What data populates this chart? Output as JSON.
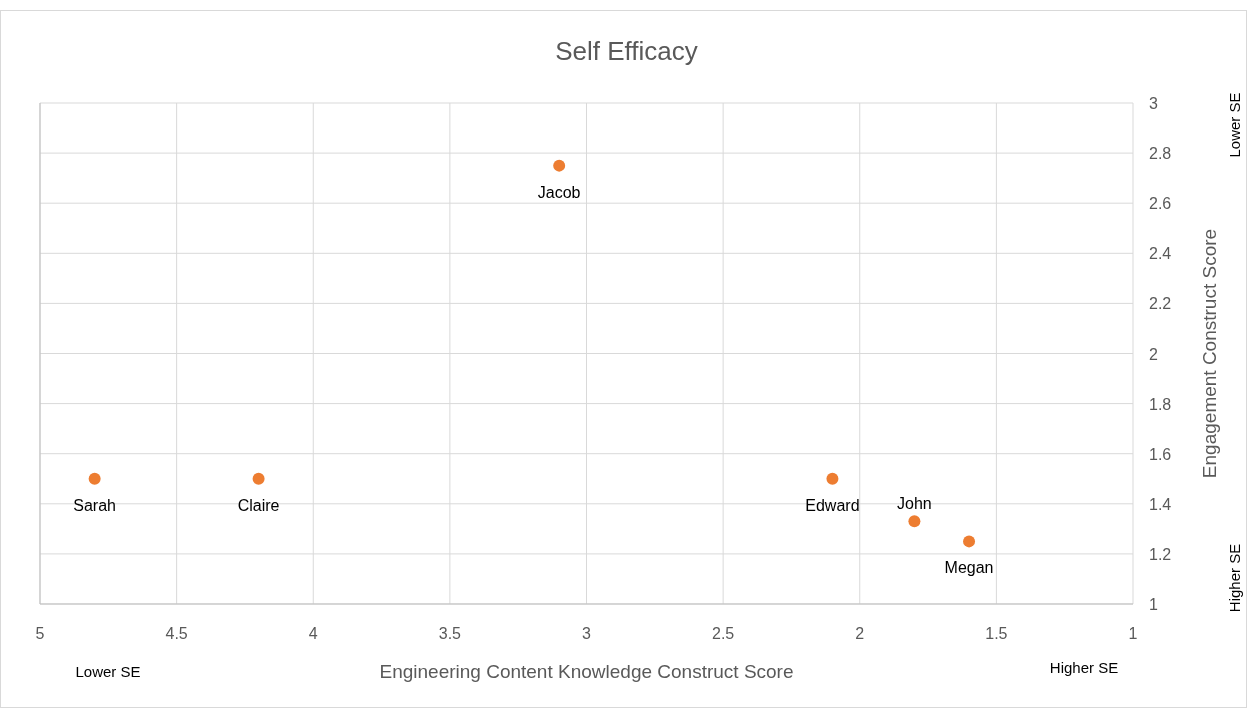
{
  "chart_data": {
    "type": "scatter",
    "title": "Self Efficacy",
    "xlabel": "Engineering Content Knowledge Construct Score",
    "ylabel": "Engagement Construct Score",
    "x": [
      3.1,
      4.8,
      4.2,
      2.1,
      1.8,
      1.6
    ],
    "series": [
      {
        "color": "#ed7d31",
        "values": [
          2.75,
          1.5,
          1.5,
          1.5,
          1.33,
          1.25
        ]
      }
    ],
    "xlim": [
      5,
      1
    ],
    "xticks": [
      5,
      4.5,
      4,
      3.5,
      3,
      2.5,
      2,
      1.5,
      1
    ],
    "ylim": [
      1,
      3
    ],
    "yticks": [
      1,
      1.2,
      1.4,
      1.6,
      1.8,
      2,
      2.2,
      2.4,
      2.6,
      2.8,
      3
    ],
    "grid": true,
    "marker": "circle",
    "annotations": [
      {
        "text": "Jacob",
        "x": 3.1,
        "y": 2.75
      },
      {
        "text": "Sarah",
        "x": 4.8,
        "y": 1.5
      },
      {
        "text": "Claire",
        "x": 4.2,
        "y": 1.5
      },
      {
        "text": "Edward",
        "x": 2.1,
        "y": 1.5
      },
      {
        "text": "John",
        "x": 1.8,
        "y": 1.33
      },
      {
        "text": "Megan",
        "x": 1.6,
        "y": 1.25
      },
      "Lower SE",
      "Higher SE",
      "Lower SE",
      "Higher SE"
    ]
  }
}
